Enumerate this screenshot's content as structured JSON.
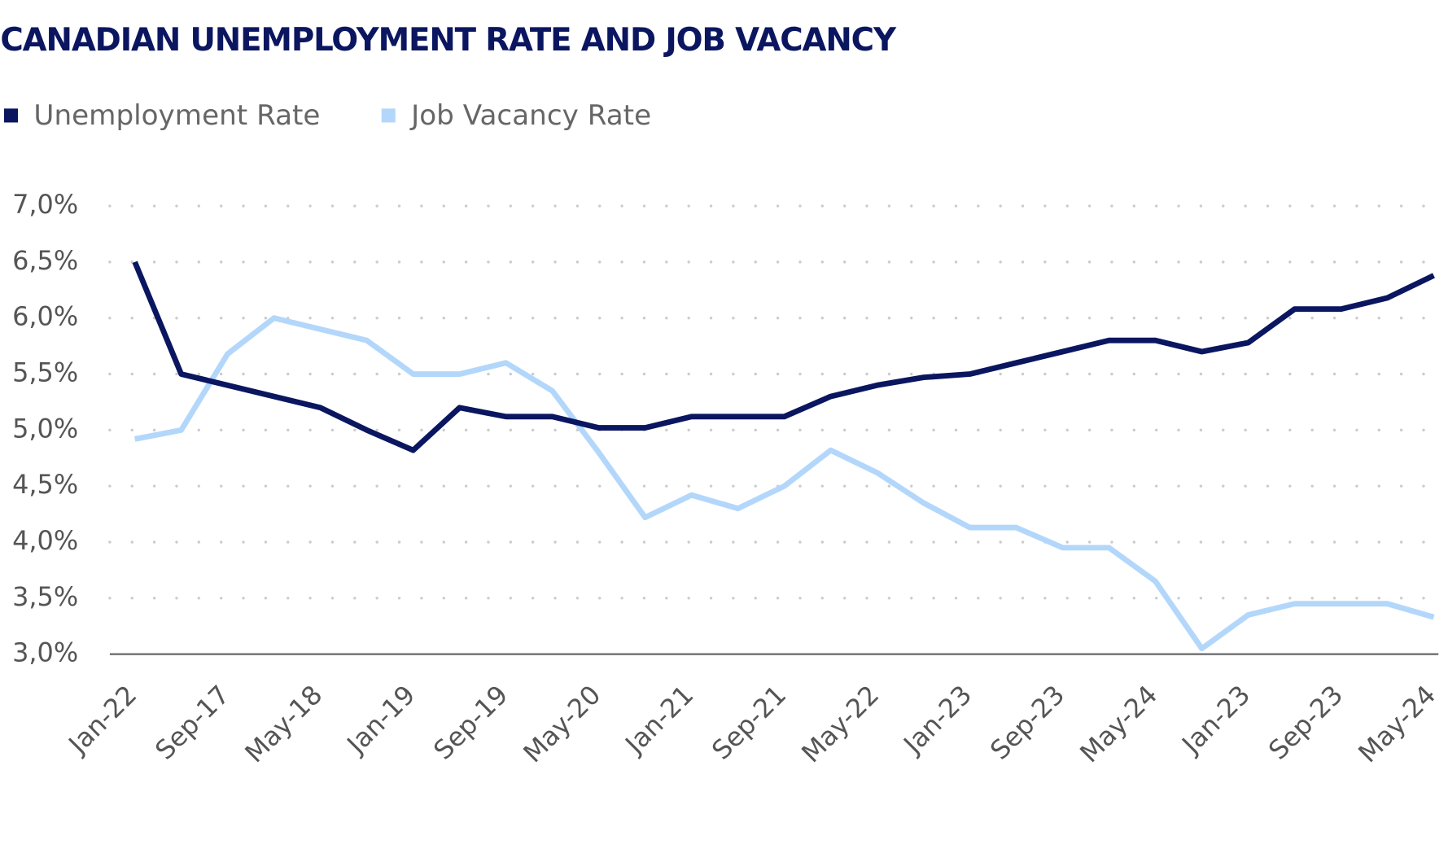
{
  "chart_data": {
    "type": "line",
    "title": "CANADIAN UNEMPLOYMENT RATE AND JOB VACANCY",
    "categories": [
      "Jan-22",
      null,
      "Sep-17",
      null,
      "May-18",
      null,
      "Jan-19",
      null,
      "Sep-19",
      null,
      "May-20",
      null,
      "Jan-21",
      null,
      "Sep-21",
      null,
      "May-22",
      null,
      "Jan-23",
      null,
      "Sep-23",
      null,
      "May-24",
      null,
      "Jan-23",
      null,
      "Sep-23",
      null,
      "May-24"
    ],
    "series": [
      {
        "name": "Unemployment Rate",
        "color": "#0b1660",
        "values": [
          6.5,
          5.5,
          5.4,
          5.3,
          5.2,
          5.0,
          4.82,
          5.2,
          5.12,
          5.12,
          5.02,
          5.02,
          5.12,
          5.12,
          5.12,
          5.3,
          5.4,
          5.47,
          5.5,
          5.6,
          5.7,
          5.8,
          5.8,
          5.7,
          5.78,
          6.08,
          6.08,
          6.18,
          6.38
        ]
      },
      {
        "name": "Job Vacancy Rate",
        "color": "#b3d7fb",
        "values": [
          4.92,
          5.0,
          5.68,
          6.0,
          5.9,
          5.8,
          5.5,
          5.5,
          5.6,
          5.35,
          4.8,
          4.22,
          4.42,
          4.3,
          4.5,
          4.82,
          4.62,
          4.35,
          4.13,
          4.13,
          3.95,
          3.95,
          3.65,
          3.05,
          3.35,
          3.45,
          3.45,
          3.45,
          3.33
        ]
      }
    ],
    "ylim": [
      3.0,
      7.0
    ],
    "yticks": [
      {
        "value": 3.0,
        "label": "3,0%"
      },
      {
        "value": 3.5,
        "label": "3,5%"
      },
      {
        "value": 4.0,
        "label": "4,0%"
      },
      {
        "value": 4.5,
        "label": "4,5%"
      },
      {
        "value": 5.0,
        "label": "5,0%"
      },
      {
        "value": 5.5,
        "label": "5,5%"
      },
      {
        "value": 6.0,
        "label": "6,0%"
      },
      {
        "value": 6.5,
        "label": "6,5%"
      },
      {
        "value": 7.0,
        "label": "7,0%"
      }
    ],
    "grid": true,
    "legend": "top-left"
  }
}
